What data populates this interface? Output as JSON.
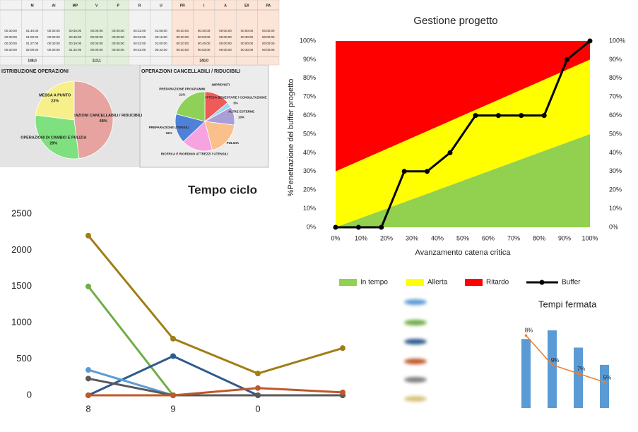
{
  "table": {
    "header": [
      "",
      "M",
      "AI",
      "MP",
      "V",
      "P",
      "R",
      "U",
      "PR",
      "I",
      "A",
      "EX",
      "PA"
    ],
    "rows": [
      [
        "00:30:00",
        "01:40:00",
        "00:30:00",
        "00:45:00",
        "00:00:00",
        "00:00:00",
        "00:32:00",
        "01:08:00",
        "00:20:00",
        "00:40:00",
        "00:00:00",
        "00:00:00",
        "00:00:00"
      ],
      [
        "00:30:00",
        "01:00:00",
        "00:30:00",
        "00:45:00",
        "00:00:00",
        "00:00:00",
        "00:32:00",
        "00:16:00",
        "00:20:00",
        "00:03:00",
        "00:00:00",
        "00:30:00",
        "00:00:00"
      ],
      [
        "00:30:00",
        "01:27:00",
        "00:30:00",
        "00:19:00",
        "00:00:00",
        "00:00:00",
        "00:32:00",
        "01:00:00",
        "00:20:00",
        "00:40:00",
        "00:00:00",
        "00:00:00",
        "00:00:00"
      ],
      [
        "00:30:00",
        "02:08:00",
        "00:30:00",
        "01:42:00",
        "00:00:00",
        "00:00:00",
        "00:32:00",
        "00:32:00",
        "00:20:00",
        "00:03:00",
        "00:00:00",
        "00:30:00",
        "00:00:00"
      ]
    ],
    "totals": [
      "148,0",
      "113,1",
      "240,0"
    ]
  },
  "chart_data": [
    {
      "type": "pie",
      "title": "ISTRIBUZIONE OPERAZIONI",
      "categories": [
        "OPERAZIONI CANCELLABILI / RIDUCIBILI",
        "OPERAZIONI DI CAMBIO E PULIZIA",
        "MESSA A PUNTO"
      ],
      "values": [
        48,
        29,
        23
      ],
      "value_labels": [
        "48%",
        "29%",
        "23%"
      ],
      "colors": [
        "#e6a3a0",
        "#7fe07f",
        "#f7f08a"
      ]
    },
    {
      "type": "pie",
      "title": "OPERAZIONI CANCELLABILI / RIDUCIBILI",
      "categories": [
        "IMPREVISTI",
        "ATTESA BENESTARE / CONSULTAZIONE",
        "ALTRE ESTERNE",
        "PULIZIA",
        "RICERCA E RIORDINO ATTREZZI / UTENSILI",
        "PREPARAZIONE UTENSILI",
        "PREPARAZIONE PROGRAMMI"
      ],
      "values": [
        14,
        3,
        10,
        19,
        17,
        16,
        21
      ],
      "value_labels": [
        null,
        "3%",
        "10%",
        null,
        null,
        "16%",
        "21%"
      ],
      "colors": [
        "#f05a5a",
        "#9fd8f0",
        "#a99fd8",
        "#f9c08c",
        "#f7a3e0",
        "#4f81d8",
        "#8fd158"
      ]
    },
    {
      "type": "line",
      "title": "Tempo ciclo",
      "categories": [
        "8",
        "9",
        "0",
        null
      ],
      "ylim": [
        0,
        2500
      ],
      "yticks": [
        0,
        500,
        1000,
        1500,
        2000,
        2500
      ],
      "series": [
        {
          "color": "#a07d16",
          "values": [
            2200,
            780,
            300,
            650
          ]
        },
        {
          "color": "#70ad47",
          "values": [
            1500,
            0,
            0,
            0
          ]
        },
        {
          "color": "#2e5b8c",
          "values": [
            0,
            540,
            0,
            0
          ]
        },
        {
          "color": "#5b9bd5",
          "values": [
            350,
            0,
            0,
            0
          ]
        },
        {
          "color": "#595959",
          "values": [
            230,
            0,
            0,
            0
          ]
        },
        {
          "color": "#c0582a",
          "values": [
            0,
            0,
            100,
            40
          ]
        }
      ]
    },
    {
      "type": "area",
      "title": "Gestione progetto",
      "x_label": "Avanzamento catena critica",
      "y_label": "%Penetrazione del buffer progetto",
      "xlim": [
        0,
        100
      ],
      "ylim": [
        0,
        100
      ],
      "y2lim": [
        0,
        100
      ],
      "xticks": [
        {
          "value": 0,
          "label": "0%"
        },
        {
          "value": 10,
          "label": "10%"
        },
        {
          "value": 20,
          "label": "20%"
        },
        {
          "value": 30,
          "label": "30%"
        },
        {
          "value": 40,
          "label": "40%"
        },
        {
          "value": 50,
          "label": "50%"
        },
        {
          "value": 60,
          "label": "60%"
        },
        {
          "value": 70,
          "label": "70%"
        },
        {
          "value": 80,
          "label": "80%"
        },
        {
          "value": 90,
          "label": "90%"
        },
        {
          "value": 100,
          "label": "100%"
        }
      ],
      "yticks": [
        {
          "value": 0,
          "label": "0%"
        },
        {
          "value": 10,
          "label": "10%"
        },
        {
          "value": 20,
          "label": "20%"
        },
        {
          "value": 30,
          "label": "30%"
        },
        {
          "value": 40,
          "label": "40%"
        },
        {
          "value": 50,
          "label": "50%"
        },
        {
          "value": 60,
          "label": "60%"
        },
        {
          "value": 70,
          "label": "70%"
        },
        {
          "value": 80,
          "label": "80%"
        },
        {
          "value": 90,
          "label": "90%"
        },
        {
          "value": 100,
          "label": "100%"
        }
      ],
      "y2ticks": [
        {
          "value": 0,
          "label": "0%"
        },
        {
          "value": 10,
          "label": "10%"
        },
        {
          "value": 20,
          "label": "20%"
        },
        {
          "value": 30,
          "label": "30%"
        },
        {
          "value": 40,
          "label": "40%"
        },
        {
          "value": 50,
          "label": "50%"
        },
        {
          "value": 60,
          "label": "60%"
        },
        {
          "value": 70,
          "label": "70%"
        },
        {
          "value": 80,
          "label": "80%"
        },
        {
          "value": 90,
          "label": "90%"
        },
        {
          "value": 100,
          "label": "100%"
        }
      ],
      "series": [
        {
          "name": "In tempo",
          "color": "#92d050",
          "x": [
            0,
            100
          ],
          "values": [
            0,
            50
          ]
        },
        {
          "name": "Allerta",
          "color": "#ffff00",
          "x": [
            0,
            100
          ],
          "values": [
            30,
            40
          ]
        },
        {
          "name": "Ritardo",
          "color": "#ff0000",
          "x": [
            0,
            100
          ],
          "values": [
            70,
            10
          ]
        },
        {
          "name": "Buffer",
          "color": "#000000",
          "style": "line",
          "x": [
            0,
            9,
            18,
            27,
            36,
            45,
            55,
            64,
            73,
            82,
            91,
            100
          ],
          "values": [
            0,
            0,
            0,
            30,
            30,
            40,
            60,
            60,
            60,
            60,
            90,
            100
          ]
        }
      ]
    },
    {
      "type": "bar",
      "title": "Tempi fermata",
      "values": [
        8,
        9,
        7,
        5
      ],
      "value_labels": [
        "8%",
        "9%",
        "7%",
        "5%"
      ],
      "color": "#5b9bd5",
      "trend": {
        "color": "#ed7d31",
        "values": [
          8.4,
          5,
          4,
          3
        ]
      }
    }
  ]
}
